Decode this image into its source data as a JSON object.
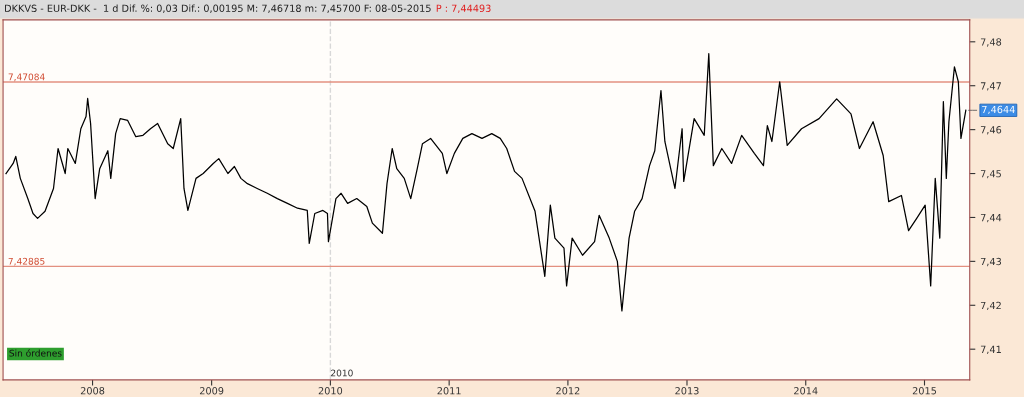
{
  "chart_data": {
    "type": "line",
    "title": "DKKVS - EUR-DKK -  1 d Dif. %: 0,03 Dif.: 0,00195 M: 7,46718 m: 7,45700 F: 08-05-2015",
    "annotations": [
      "P : 7,44493",
      {
        "text": "7,4644",
        "x": "2015-05-08",
        "y": 7.4644
      },
      "Sin órdenes"
    ],
    "x": [
      "2007-04-10",
      "2007-05-02",
      "2007-05-10",
      "2007-05-24",
      "2007-06-16",
      "2007-07-02",
      "2007-07-16",
      "2007-08-08",
      "2007-09-03",
      "2007-09-17",
      "2007-10-09",
      "2007-10-17",
      "2007-11-09",
      "2007-11-26",
      "2007-12-12",
      "2007-12-17",
      "2007-12-26",
      "2008-01-09",
      "2008-01-23",
      "2008-02-17",
      "2008-02-26",
      "2008-03-12",
      "2008-03-26",
      "2008-04-18",
      "2008-05-13",
      "2008-06-04",
      "2008-06-27",
      "2008-07-19",
      "2008-08-19",
      "2008-09-05",
      "2008-09-28",
      "2008-10-08",
      "2008-10-20",
      "2008-11-14",
      "2008-12-06",
      "2009-01-06",
      "2009-01-23",
      "2009-02-20",
      "2009-03-12",
      "2009-04-01",
      "2009-04-21",
      "2009-05-21",
      "2009-06-21",
      "2009-07-22",
      "2009-08-22",
      "2009-09-22",
      "2009-10-22",
      "2009-10-28",
      "2009-11-14",
      "2009-12-09",
      "2009-12-23",
      "2009-12-26",
      "2010-01-18",
      "2010-02-03",
      "2010-02-23",
      "2010-03-23",
      "2010-04-23",
      "2010-05-10",
      "2010-06-10",
      "2010-06-24",
      "2010-07-10",
      "2010-07-24",
      "2010-08-16",
      "2010-09-05",
      "2010-09-25",
      "2010-10-11",
      "2010-11-05",
      "2010-12-11",
      "2010-12-25",
      "2011-01-17",
      "2011-02-12",
      "2011-03-12",
      "2011-04-12",
      "2011-05-12",
      "2011-06-07",
      "2011-06-27",
      "2011-07-21",
      "2011-08-13",
      "2011-09-22",
      "2011-10-22",
      "2011-11-08",
      "2011-11-22",
      "2011-12-20",
      "2011-12-28",
      "2012-01-14",
      "2012-02-15",
      "2012-03-23",
      "2012-04-06",
      "2012-05-07",
      "2012-06-01",
      "2012-06-15",
      "2012-07-07",
      "2012-07-24",
      "2012-08-16",
      "2012-09-08",
      "2012-09-24",
      "2012-10-13",
      "2012-10-25",
      "2012-11-25",
      "2012-12-17",
      "2012-12-22",
      "2013-01-23",
      "2013-02-23",
      "2013-03-09",
      "2013-03-23",
      "2013-04-18",
      "2013-05-18",
      "2013-06-18",
      "2013-07-27",
      "2013-08-24",
      "2013-09-05",
      "2013-09-19",
      "2013-10-13",
      "2013-11-05",
      "2013-12-19",
      "2014-02-11",
      "2014-04-06",
      "2014-05-20",
      "2014-06-15",
      "2014-07-27",
      "2014-08-27",
      "2014-09-13",
      "2014-10-22",
      "2014-11-13",
      "2014-12-08",
      "2015-01-03",
      "2015-01-20",
      "2015-02-03",
      "2015-02-17",
      "2015-02-28",
      "2015-03-09",
      "2015-03-17",
      "2015-04-03",
      "2015-04-15",
      "2015-04-23",
      "2015-05-08"
    ],
    "series": [
      {
        "color": "#000000",
        "values": [
          7.45,
          7.4523,
          7.4539,
          7.4489,
          7.4443,
          7.4409,
          7.4398,
          7.4414,
          7.4466,
          7.4557,
          7.45,
          7.4557,
          7.4523,
          7.4602,
          7.463,
          7.4671,
          7.4614,
          7.4443,
          7.4511,
          7.4552,
          7.4489,
          7.4591,
          7.4625,
          7.4621,
          7.4584,
          7.4587,
          7.4602,
          7.4614,
          7.4568,
          7.4557,
          7.4625,
          7.4466,
          7.4416,
          7.4489,
          7.45,
          7.4523,
          7.4534,
          7.45,
          7.4516,
          7.4489,
          7.4477,
          7.4466,
          7.4455,
          7.4443,
          7.4432,
          7.4421,
          7.4416,
          7.4341,
          7.4409,
          7.4416,
          7.4409,
          7.4345,
          7.4443,
          7.4455,
          7.4432,
          7.4443,
          7.4425,
          7.4387,
          7.4364,
          7.4477,
          7.4557,
          7.4511,
          7.4489,
          7.4443,
          7.4511,
          7.4568,
          7.458,
          7.4546,
          7.45,
          7.4546,
          7.458,
          7.4591,
          7.458,
          7.4591,
          7.458,
          7.4557,
          7.4505,
          7.4489,
          7.4414,
          7.4266,
          7.4428,
          7.4353,
          7.433,
          7.4244,
          7.4353,
          7.4314,
          7.4345,
          7.4405,
          7.4353,
          7.43,
          7.4187,
          7.4353,
          7.4414,
          7.4443,
          7.4518,
          7.4552,
          7.4689,
          7.4573,
          7.4466,
          7.4602,
          7.4482,
          7.4625,
          7.4587,
          7.4773,
          7.4518,
          7.4557,
          7.4523,
          7.4587,
          7.4546,
          7.4518,
          7.4609,
          7.4573,
          7.4709,
          7.4564,
          7.4602,
          7.4625,
          7.467,
          7.4636,
          7.4557,
          7.4618,
          7.4541,
          7.4436,
          7.445,
          7.437,
          7.4398,
          7.4428,
          7.4244,
          7.4489,
          7.4353,
          7.4664,
          7.4489,
          7.4618,
          7.4743,
          7.4709,
          7.458,
          7.4644
        ]
      }
    ],
    "xlim": [
      "2007-04-01",
      "2015-05-20"
    ],
    "xticks": [
      {
        "value": "2008-01-01",
        "label": "2008"
      },
      {
        "value": "2009-01-01",
        "label": "2009"
      },
      {
        "value": "2010-01-01",
        "label": "2010"
      },
      {
        "value": "2011-01-01",
        "label": "2011"
      },
      {
        "value": "2012-01-01",
        "label": "2012"
      },
      {
        "value": "2013-01-01",
        "label": "2013"
      },
      {
        "value": "2014-01-01",
        "label": "2014"
      },
      {
        "value": "2015-01-01",
        "label": "2015"
      }
    ],
    "ylim": [
      7.403,
      7.485
    ],
    "yticks": [
      {
        "value": 7.41,
        "label": "7,41"
      },
      {
        "value": 7.42,
        "label": "7,42"
      },
      {
        "value": 7.43,
        "label": "7,43"
      },
      {
        "value": 7.44,
        "label": "7,44"
      },
      {
        "value": 7.45,
        "label": "7,45"
      },
      {
        "value": 7.46,
        "label": "7,46"
      },
      {
        "value": 7.47,
        "label": "7,47"
      },
      {
        "value": 7.48,
        "label": "7,48"
      }
    ],
    "ref_lines": [
      {
        "axis": "y",
        "value": 7.47084,
        "label": "7,47084",
        "color": "#e39080",
        "line_style": "solid"
      },
      {
        "axis": "y",
        "value": 7.42885,
        "label": "7,42885",
        "color": "#e39080",
        "line_style": "solid"
      },
      {
        "axis": "x",
        "value": "2010-01-01",
        "label": "2010",
        "color": "#d8d8d8",
        "line_style": "dashed"
      }
    ],
    "grid": false,
    "legend": false,
    "marker": "none",
    "line_style": "solid"
  }
}
